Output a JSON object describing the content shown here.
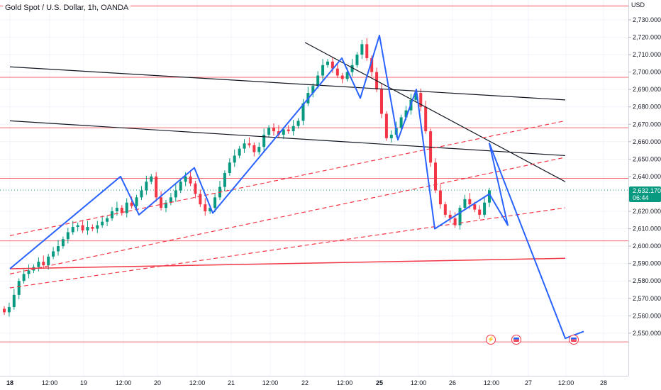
{
  "header": {
    "title": "Gold Spot / U.S. Dollar, 1h, OANDA",
    "currency": "USD"
  },
  "last_price": {
    "value": "2,632.170",
    "countdown": "06:44"
  },
  "events": [
    {
      "icon": "lightning-event-icon",
      "day": "26"
    },
    {
      "icon": "us-flag-event-icon",
      "day": "26"
    },
    {
      "icon": "us-flag-event-icon",
      "day": "27"
    }
  ],
  "colors": {
    "up": "#089981",
    "down": "#f23645",
    "trend": "#131722",
    "zigzag": "#2962ff",
    "level": "#f23645"
  },
  "chart_data": {
    "type": "candlestick",
    "symbol": "XAUUSD",
    "timeframe": "1h",
    "ylim": [
      2543,
      2738
    ],
    "y_ticks": [
      "2,550.000",
      "2,560.000",
      "2,570.000",
      "2,580.000",
      "2,590.000",
      "2,600.000",
      "2,610.000",
      "2,620.000",
      "2,630.000",
      "2,640.000",
      "2,650.000",
      "2,660.000",
      "2,670.000",
      "2,680.000",
      "2,690.000",
      "2,700.000",
      "2,710.000",
      "2,720.000",
      "2,730.000"
    ],
    "x_ticks": [
      "18",
      "12:00",
      "19",
      "12:00",
      "20",
      "12:00",
      "21",
      "12:00",
      "22",
      "12:00",
      "25",
      "12:00",
      "26",
      "12:00",
      "27",
      "12:00",
      "28"
    ],
    "x_ticks_bold": [
      "18",
      "25"
    ],
    "closes": [
      2562,
      2565,
      2572,
      2580,
      2584,
      2586,
      2588,
      2591,
      2589,
      2594,
      2597,
      2600,
      2604,
      2608,
      2611,
      2612,
      2609,
      2611,
      2610,
      2612,
      2614,
      2616,
      2620,
      2622,
      2619,
      2625,
      2623,
      2628,
      2632,
      2637,
      2640,
      2628,
      2622,
      2625,
      2628,
      2632,
      2637,
      2640,
      2636,
      2630,
      2624,
      2620,
      2622,
      2628,
      2634,
      2642,
      2648,
      2652,
      2656,
      2659,
      2658,
      2654,
      2657,
      2664,
      2668,
      2666,
      2664,
      2667,
      2666,
      2669,
      2672,
      2682,
      2688,
      2692,
      2698,
      2704,
      2706,
      2702,
      2698,
      2696,
      2700,
      2704,
      2710,
      2716,
      2708,
      2700,
      2690,
      2676,
      2662,
      2664,
      2668,
      2674,
      2678,
      2684,
      2688,
      2680,
      2666,
      2648,
      2632,
      2624,
      2618,
      2616,
      2612,
      2622,
      2627,
      2624,
      2621,
      2618,
      2625,
      2632
    ],
    "levels": [
      2738,
      2697,
      2668,
      2639,
      2603,
      2545
    ],
    "overlays": {
      "trend_lines": [
        {
          "from": [
            "18 00:00",
            2703
          ],
          "to": [
            "27 12:00",
            2684
          ]
        },
        {
          "from": [
            "18 00:00",
            2672
          ],
          "to": [
            "27 12:00",
            2652
          ]
        },
        {
          "from": [
            "22 00:00",
            2717
          ],
          "to": [
            "27 12:00",
            2637
          ]
        }
      ],
      "channel_lines_dashed": [
        {
          "from": [
            "18 00:00",
            2606
          ],
          "to": [
            "27 12:00",
            2672
          ]
        },
        {
          "from": [
            "18 00:00",
            2576
          ],
          "to": [
            "27 12:00",
            2622
          ]
        },
        {
          "from": [
            "18 00:00",
            2584
          ],
          "to": [
            "27 12:00",
            2651
          ]
        }
      ],
      "horizontal_ray": {
        "from": [
          "18 00:00",
          2587
        ],
        "to": [
          "27 12:00",
          2593
        ]
      },
      "zigzag": [
        [
          "18 00:00",
          2587
        ],
        [
          "19 12:00",
          2640
        ],
        [
          "19 18:00",
          2618
        ],
        [
          "20 12:00",
          2645
        ],
        [
          "20 18:00",
          2619
        ],
        [
          "22 12:00",
          2708
        ],
        [
          "22 18:00",
          2685
        ],
        [
          "25 00:00",
          2721
        ],
        [
          "25 06:00",
          2661
        ],
        [
          "25 12:00",
          2690
        ],
        [
          "25 18:00",
          2610
        ],
        [
          "26 12:00",
          2630
        ],
        [
          "26 18:00",
          2612
        ],
        [
          "26 12:00",
          2659
        ],
        [
          "27 12:00",
          2547
        ],
        [
          "27 18:00",
          2551
        ]
      ]
    }
  }
}
